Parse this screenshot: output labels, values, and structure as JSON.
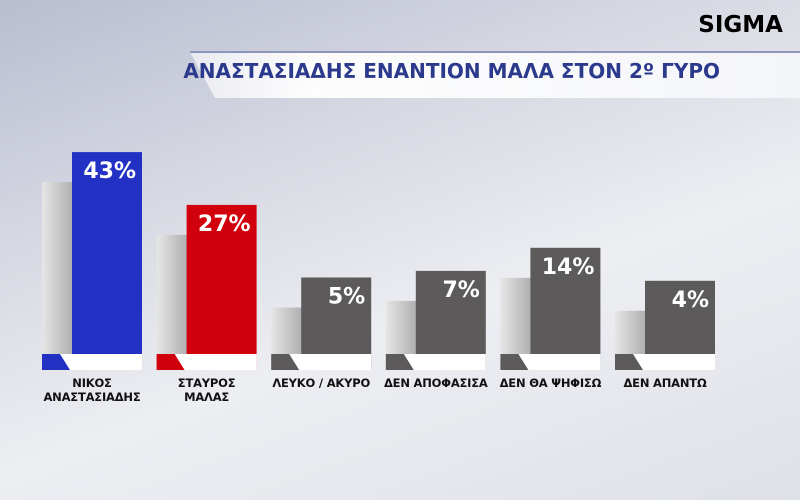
{
  "chart_data": {
    "type": "bar",
    "brand": "SIGMA",
    "title": "ΑΝΑΣΤΑΣΙΑΔΗΣ ΕΝΑΝΤΙΟΝ ΜΑΛΑ ΣΤΟΝ 2º ΓΥΡΟ",
    "categories": [
      "ΝΙΚΟΣ\nΑΝΑΣΤΑΣΙΑΔΗΣ",
      "ΣΤΑΥΡΟΣ\nΜΑΛΑΣ",
      "ΛΕΥΚΟ / ΑΚΥΡΟ",
      "ΔΕΝ ΑΠΟΦΑΣΙΣΑ",
      "ΔΕΝ ΘΑ ΨΗΦΙΣΩ",
      "ΔΕΝ ΑΠΑΝΤΩ"
    ],
    "values": [
      43,
      27,
      5,
      7,
      14,
      4
    ],
    "value_labels": [
      "43%",
      "27%",
      "5%",
      "7%",
      "14%",
      "4%"
    ],
    "colors": [
      "#2231c4",
      "#d0000c",
      "#5c5a5b",
      "#5c5a5b",
      "#5c5a5b",
      "#5c5a5b"
    ]
  }
}
